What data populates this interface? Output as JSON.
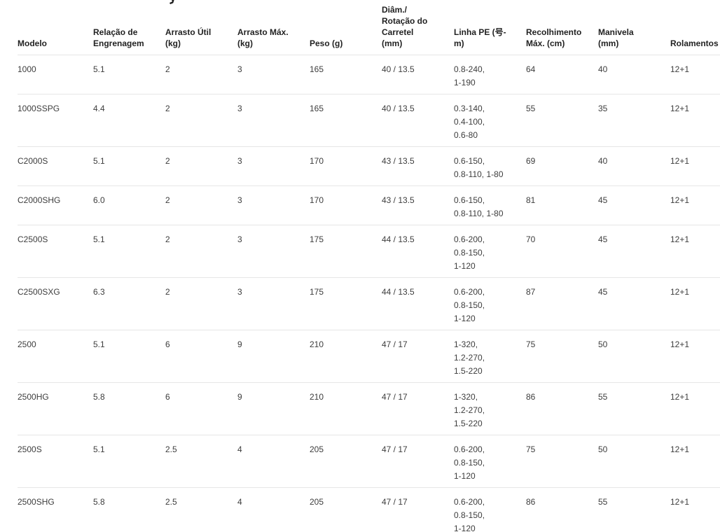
{
  "table": {
    "columns": [
      {
        "field": "model",
        "lines": [
          "Modelo"
        ]
      },
      {
        "field": "gear_ratio",
        "lines": [
          "Relação de",
          "Engrenagem"
        ]
      },
      {
        "field": "drag_util",
        "lines": [
          "Arrasto Útil",
          "(kg)"
        ]
      },
      {
        "field": "drag_max",
        "lines": [
          "Arrasto Máx.",
          "(kg)"
        ]
      },
      {
        "field": "weight",
        "lines": [
          "Peso (g)"
        ]
      },
      {
        "field": "spool",
        "lines": [
          "Diâm./",
          "Rotação do",
          "Carretel",
          "(mm)"
        ]
      },
      {
        "field": "pe_line",
        "lines": [
          "Linha PE (号-",
          "m)"
        ]
      },
      {
        "field": "retrieve",
        "lines": [
          "Recolhimento",
          "Máx. (cm)"
        ]
      },
      {
        "field": "handle",
        "lines": [
          "Manivela",
          "(mm)"
        ]
      },
      {
        "field": "bearings",
        "lines": [
          "Rolamentos"
        ]
      }
    ],
    "rows": [
      {
        "model": "1000",
        "gear_ratio": "5.1",
        "drag_util": "2",
        "drag_max": "3",
        "weight": "165",
        "spool": "40 / 13.5",
        "pe_line": [
          "0.8-240,",
          "1-190"
        ],
        "retrieve": "64",
        "handle": "40",
        "bearings": "12+1"
      },
      {
        "model": "1000SSPG",
        "gear_ratio": "4.4",
        "drag_util": "2",
        "drag_max": "3",
        "weight": "165",
        "spool": "40 / 13.5",
        "pe_line": [
          "0.3-140,",
          "0.4-100,",
          "0.6-80"
        ],
        "retrieve": "55",
        "handle": "35",
        "bearings": "12+1"
      },
      {
        "model": "C2000S",
        "gear_ratio": "5.1",
        "drag_util": "2",
        "drag_max": "3",
        "weight": "170",
        "spool": "43 / 13.5",
        "pe_line": [
          "0.6-150,",
          "0.8-110, 1-80"
        ],
        "retrieve": "69",
        "handle": "40",
        "bearings": "12+1"
      },
      {
        "model": "C2000SHG",
        "gear_ratio": "6.0",
        "drag_util": "2",
        "drag_max": "3",
        "weight": "170",
        "spool": "43 / 13.5",
        "pe_line": [
          "0.6-150,",
          "0.8-110, 1-80"
        ],
        "retrieve": "81",
        "handle": "45",
        "bearings": "12+1"
      },
      {
        "model": "C2500S",
        "gear_ratio": "5.1",
        "drag_util": "2",
        "drag_max": "3",
        "weight": "175",
        "spool": "44 / 13.5",
        "pe_line": [
          "0.6-200,",
          "0.8-150,",
          "1-120"
        ],
        "retrieve": "70",
        "handle": "45",
        "bearings": "12+1"
      },
      {
        "model": "C2500SXG",
        "gear_ratio": "6.3",
        "drag_util": "2",
        "drag_max": "3",
        "weight": "175",
        "spool": "44 / 13.5",
        "pe_line": [
          "0.6-200,",
          "0.8-150,",
          "1-120"
        ],
        "retrieve": "87",
        "handle": "45",
        "bearings": "12+1"
      },
      {
        "model": "2500",
        "gear_ratio": "5.1",
        "drag_util": "6",
        "drag_max": "9",
        "weight": "210",
        "spool": "47 / 17",
        "pe_line": [
          "1-320,",
          "1.2-270,",
          "1.5-220"
        ],
        "retrieve": "75",
        "handle": "50",
        "bearings": "12+1"
      },
      {
        "model": "2500HG",
        "gear_ratio": "5.8",
        "drag_util": "6",
        "drag_max": "9",
        "weight": "210",
        "spool": "47 / 17",
        "pe_line": [
          "1-320,",
          "1.2-270,",
          "1.5-220"
        ],
        "retrieve": "86",
        "handle": "55",
        "bearings": "12+1"
      },
      {
        "model": "2500S",
        "gear_ratio": "5.1",
        "drag_util": "2.5",
        "drag_max": "4",
        "weight": "205",
        "spool": "47 / 17",
        "pe_line": [
          "0.6-200,",
          "0.8-150,",
          "1-120"
        ],
        "retrieve": "75",
        "handle": "50",
        "bearings": "12+1"
      },
      {
        "model": "2500SHG",
        "gear_ratio": "5.8",
        "drag_util": "2.5",
        "drag_max": "4",
        "weight": "205",
        "spool": "47 / 17",
        "pe_line": [
          "0.6-200,",
          "0.8-150,",
          "1-120"
        ],
        "retrieve": "86",
        "handle": "55",
        "bearings": "12+1"
      }
    ],
    "colors": {
      "header_text": "#222222",
      "body_text": "#3d3d3d",
      "divider": "#e6e6e6",
      "background": "#ffffff"
    }
  }
}
